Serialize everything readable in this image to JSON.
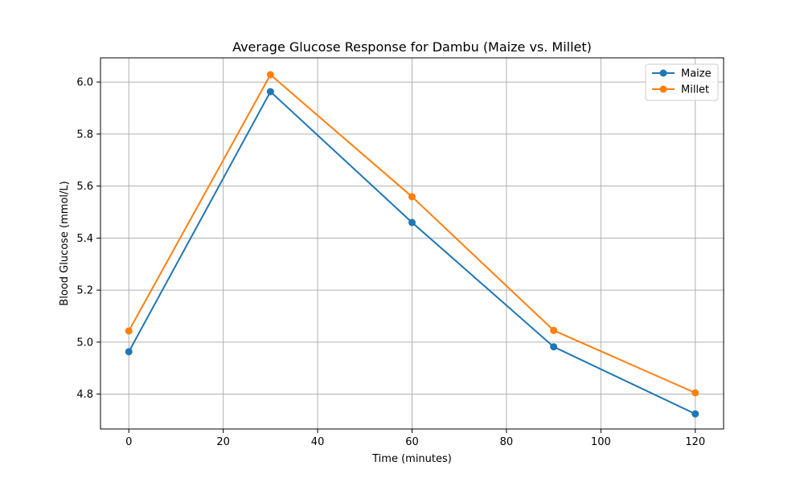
{
  "chart_data": {
    "type": "line",
    "title": "Average Glucose Response for Dambu (Maize vs. Millet)",
    "xlabel": "Time (minutes)",
    "ylabel": "Blood Glucose (mmol/L)",
    "x": [
      0,
      30,
      60,
      90,
      120
    ],
    "xlim": [
      -6,
      126
    ],
    "ylim": [
      4.666,
      6.093
    ],
    "xticks": [
      0,
      20,
      40,
      60,
      80,
      100,
      120
    ],
    "yticks": [
      4.8,
      5.0,
      5.2,
      5.4,
      5.6,
      5.8,
      6.0
    ],
    "xtick_labels": [
      "0",
      "20",
      "40",
      "60",
      "80",
      "100",
      "120"
    ],
    "ytick_labels": [
      "4.8",
      "5.0",
      "5.2",
      "5.4",
      "5.6",
      "5.8",
      "6.0"
    ],
    "grid": true,
    "legend_position": "top-right",
    "series": [
      {
        "name": "Maize",
        "color": "#1f77b4",
        "values": [
          4.963,
          5.963,
          5.46,
          4.982,
          4.724
        ]
      },
      {
        "name": "Millet",
        "color": "#ff7f0e",
        "values": [
          5.043,
          6.028,
          5.559,
          5.045,
          4.805
        ]
      }
    ]
  }
}
